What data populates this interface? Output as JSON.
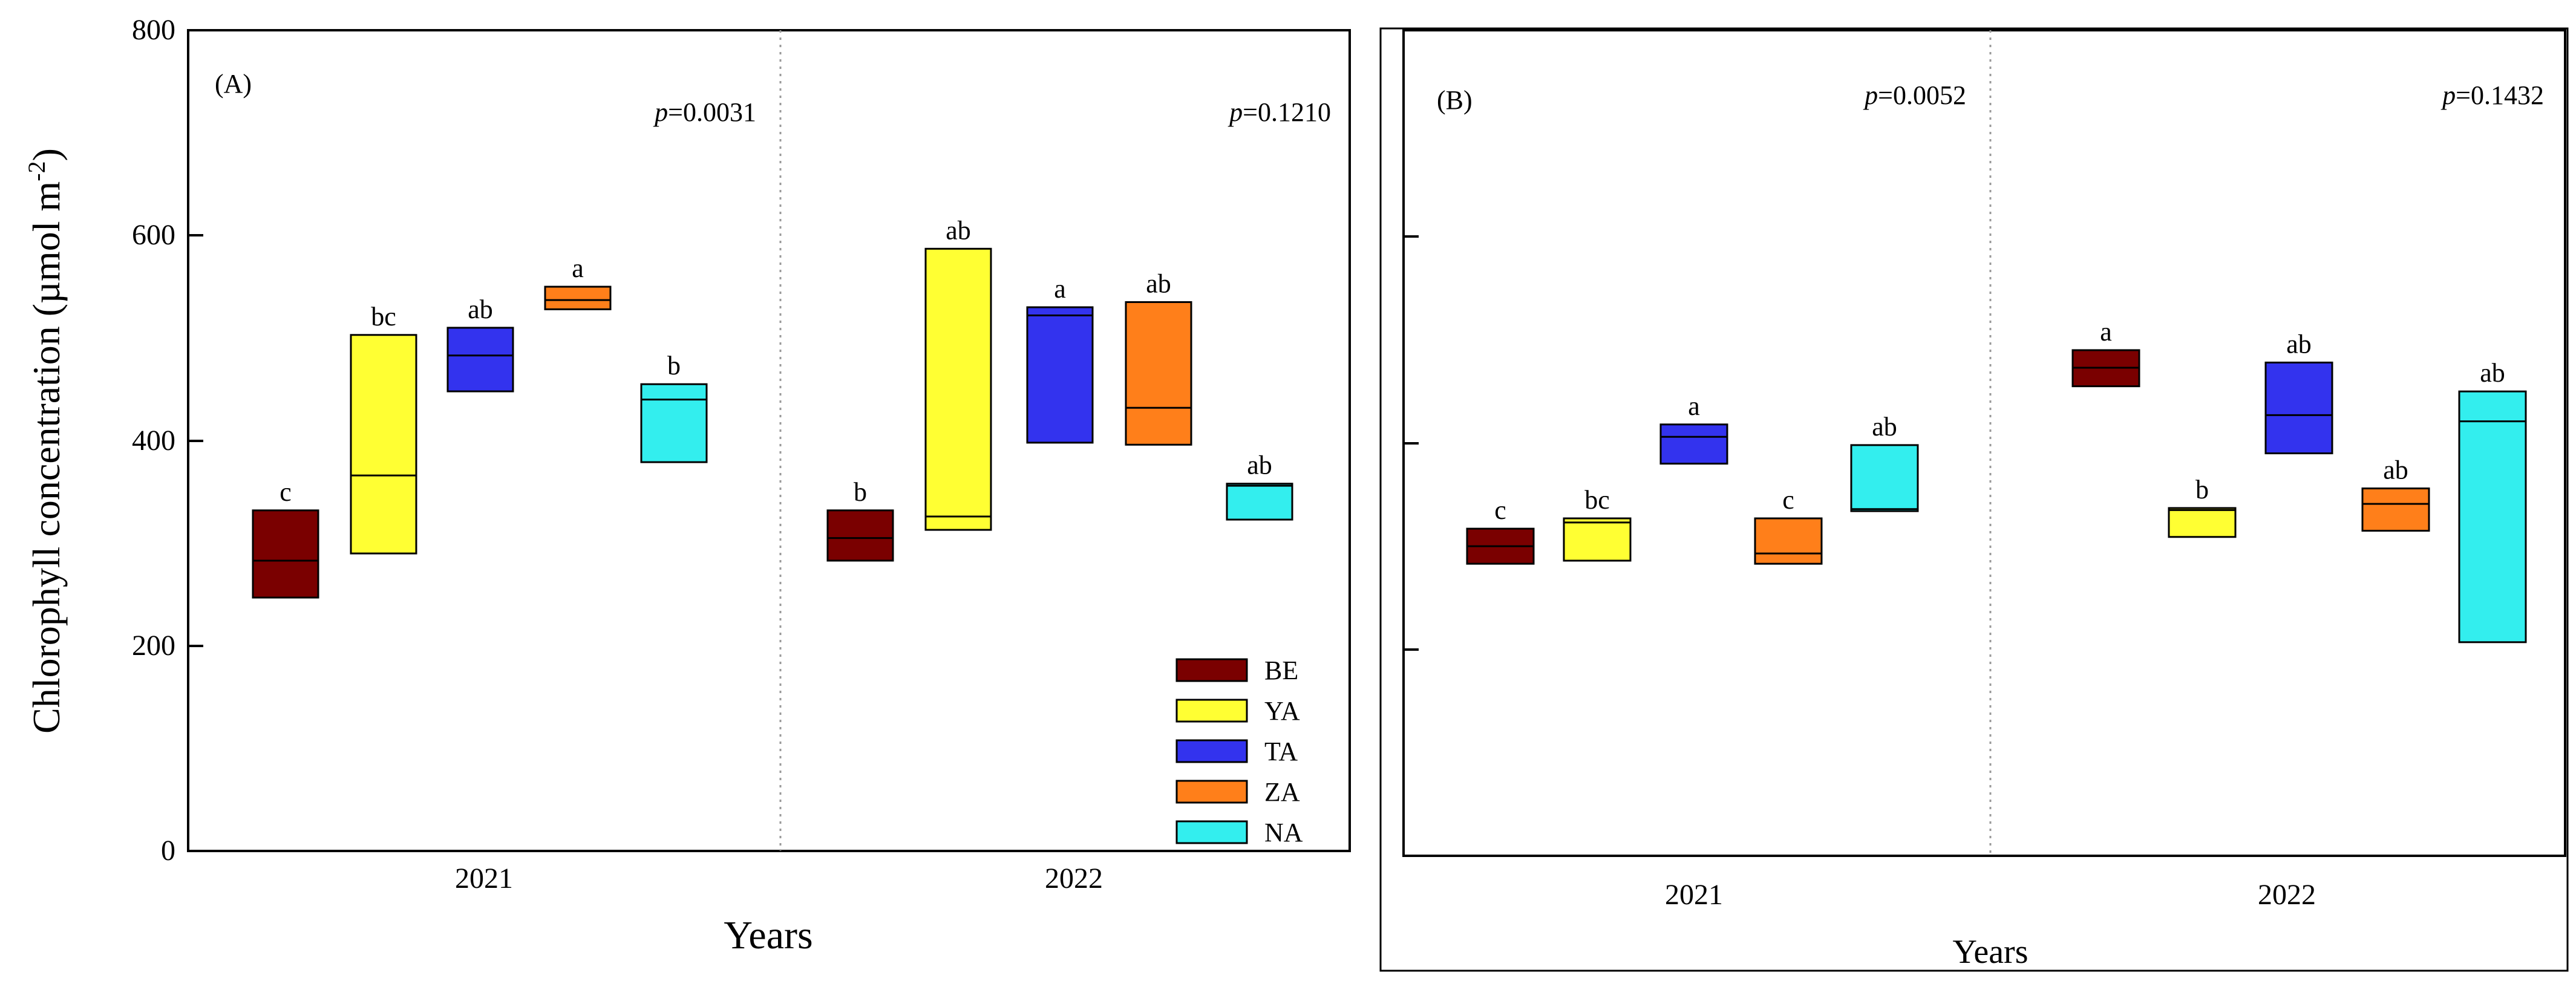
{
  "colors": {
    "BE": "#7a0000",
    "YA": "#ffff33",
    "TA": "#3333ee",
    "ZA": "#ff7f1a",
    "NA": "#33eeee"
  },
  "y_axis": {
    "label_main": "Chlorophyll concentration (µmol m",
    "label_sup": "-2",
    "label_end": ")",
    "ticks": [
      "0",
      "200",
      "400",
      "600",
      "800"
    ]
  },
  "legend": [
    {
      "key": "BE",
      "label": "BE"
    },
    {
      "key": "YA",
      "label": "YA"
    },
    {
      "key": "TA",
      "label": "TA"
    },
    {
      "key": "ZA",
      "label": "ZA"
    },
    {
      "key": "NA",
      "label": "NA"
    }
  ],
  "chart_data": [
    {
      "type": "floating-bar",
      "panel": "(A)",
      "xlabel": "Years",
      "ylabel": "Chlorophyll concentration (µmol m-2)",
      "ylim": [
        0,
        800
      ],
      "legend_position": "bottom-right",
      "groups": [
        {
          "year": "2021",
          "p_label": "p",
          "p_value": "=0.0031",
          "bars": [
            {
              "key": "BE",
              "low": 247,
              "high": 332,
              "median": 283,
              "letter": "c"
            },
            {
              "key": "YA",
              "low": 290,
              "high": 503,
              "median": 366,
              "letter": "bc"
            },
            {
              "key": "TA",
              "low": 448,
              "high": 510,
              "median": 483,
              "letter": "ab"
            },
            {
              "key": "ZA",
              "low": 528,
              "high": 550,
              "median": 537,
              "letter": "a"
            },
            {
              "key": "NA",
              "low": 379,
              "high": 455,
              "median": 440,
              "letter": "b"
            }
          ]
        },
        {
          "year": "2022",
          "p_label": "p",
          "p_value": "=0.1210",
          "bars": [
            {
              "key": "BE",
              "low": 283,
              "high": 332,
              "median": 305,
              "letter": "b"
            },
            {
              "key": "YA",
              "low": 313,
              "high": 587,
              "median": 326,
              "letter": "ab"
            },
            {
              "key": "TA",
              "low": 398,
              "high": 530,
              "median": 522,
              "letter": "a"
            },
            {
              "key": "ZA",
              "low": 396,
              "high": 535,
              "median": 432,
              "letter": "ab"
            },
            {
              "key": "NA",
              "low": 323,
              "high": 358,
              "median": 356,
              "letter": "ab"
            }
          ]
        }
      ]
    },
    {
      "type": "floating-bar",
      "panel": "(B)",
      "xlabel": "Years",
      "ylabel": "",
      "ylim": [
        0,
        800
      ],
      "groups": [
        {
          "year": "2021",
          "p_label": "p",
          "p_value": "=0.0052",
          "bars": [
            {
              "key": "BE",
              "low": 283,
              "high": 317,
              "median": 300,
              "letter": "c"
            },
            {
              "key": "YA",
              "low": 286,
              "high": 327,
              "median": 323,
              "letter": "bc"
            },
            {
              "key": "TA",
              "low": 380,
              "high": 418,
              "median": 406,
              "letter": "a"
            },
            {
              "key": "ZA",
              "low": 283,
              "high": 327,
              "median": 293,
              "letter": "c"
            },
            {
              "key": "NA",
              "low": 334,
              "high": 398,
              "median": 336,
              "letter": "ab"
            }
          ]
        },
        {
          "year": "2022",
          "p_label": "p",
          "p_value": "=0.1432",
          "bars": [
            {
              "key": "BE",
              "low": 455,
              "high": 490,
              "median": 473,
              "letter": "a"
            },
            {
              "key": "YA",
              "low": 309,
              "high": 337,
              "median": 335,
              "letter": "b"
            },
            {
              "key": "TA",
              "low": 390,
              "high": 478,
              "median": 427,
              "letter": "ab"
            },
            {
              "key": "ZA",
              "low": 315,
              "high": 356,
              "median": 341,
              "letter": "ab"
            },
            {
              "key": "NA",
              "low": 207,
              "high": 450,
              "median": 421,
              "letter": "ab"
            }
          ]
        }
      ]
    }
  ]
}
